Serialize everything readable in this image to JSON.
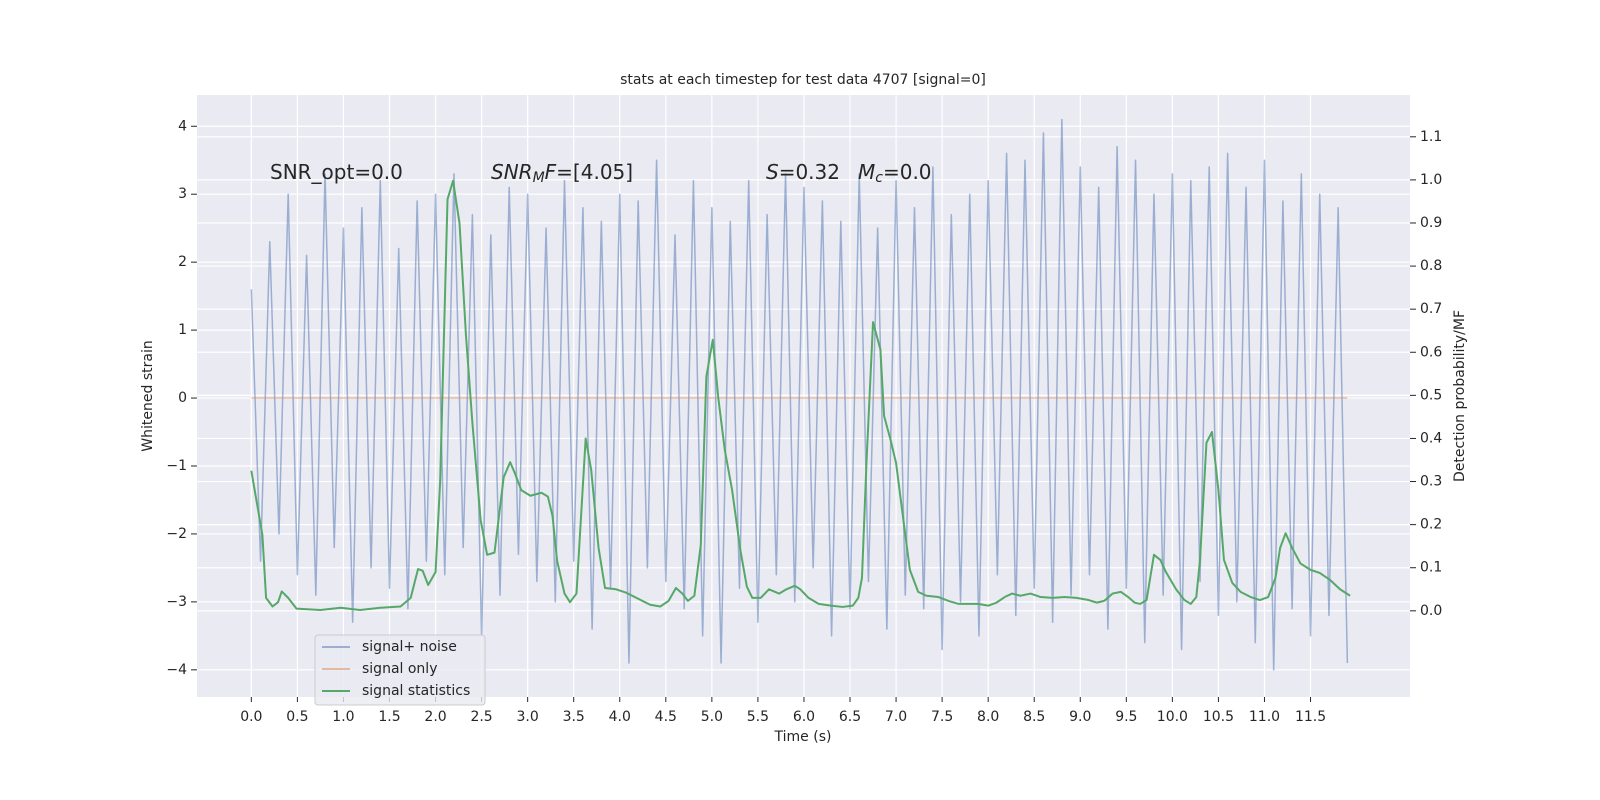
{
  "chart_data": {
    "type": "line",
    "title": "stats at each timestep for test data 4707 [signal=0]",
    "xlabel": "Time (s)",
    "ylabel": "Whitened strain",
    "y2label": "Detection probability/MF",
    "grid": true,
    "legend": "lower left",
    "background": "#eaeaf2",
    "xlim": [
      -0.59,
      12.58
    ],
    "ylim": [
      -4.4,
      4.46
    ],
    "y2lim": [
      -0.2,
      1.197
    ],
    "xticks": [
      {
        "value": 0,
        "label": "0.0"
      },
      {
        "value": 0.5,
        "label": "0.5"
      },
      {
        "value": 1,
        "label": "1.0"
      },
      {
        "value": 1.5,
        "label": "1.5"
      },
      {
        "value": 2,
        "label": "2.0"
      },
      {
        "value": 2.5,
        "label": "2.5"
      },
      {
        "value": 3,
        "label": "3.0"
      },
      {
        "value": 3.5,
        "label": "3.5"
      },
      {
        "value": 4,
        "label": "4.0"
      },
      {
        "value": 4.5,
        "label": "4.5"
      },
      {
        "value": 5,
        "label": "5.0"
      },
      {
        "value": 5.5,
        "label": "5.5"
      },
      {
        "value": 6,
        "label": "6.0"
      },
      {
        "value": 6.5,
        "label": "6.5"
      },
      {
        "value": 7,
        "label": "7.0"
      },
      {
        "value": 7.5,
        "label": "7.5"
      },
      {
        "value": 8,
        "label": "8.0"
      },
      {
        "value": 8.5,
        "label": "8.5"
      },
      {
        "value": 9,
        "label": "9.0"
      },
      {
        "value": 9.5,
        "label": "9.5"
      },
      {
        "value": 10,
        "label": "10.0"
      },
      {
        "value": 10.5,
        "label": "10.5"
      },
      {
        "value": 11,
        "label": "11.0"
      },
      {
        "value": 11.5,
        "label": "11.5"
      }
    ],
    "yticks": [
      {
        "value": -4,
        "label": "−4"
      },
      {
        "value": -3,
        "label": "−3"
      },
      {
        "value": -2,
        "label": "−2"
      },
      {
        "value": -1,
        "label": "−1"
      },
      0,
      1,
      2,
      3,
      4
    ],
    "y2ticks": [
      {
        "value": 0,
        "label": "0.0"
      },
      {
        "value": 0.1,
        "label": "0.1"
      },
      {
        "value": 0.2,
        "label": "0.2"
      },
      {
        "value": 0.3,
        "label": "0.3"
      },
      {
        "value": 0.4,
        "label": "0.4"
      },
      {
        "value": 0.5,
        "label": "0.5"
      },
      {
        "value": 0.6,
        "label": "0.6"
      },
      {
        "value": 0.7,
        "label": "0.7"
      },
      {
        "value": 0.8,
        "label": "0.8"
      },
      {
        "value": 0.9,
        "label": "0.9"
      },
      {
        "value": 1,
        "label": "1.0"
      },
      {
        "value": 1.1,
        "label": "1.1"
      }
    ],
    "annotations": [
      [
        {
          "text": "SNR_opt=0.0"
        }
      ],
      [
        {
          "text": "SNR",
          "style": "italic"
        },
        {
          "text": "M",
          "style": "italic-sub"
        },
        {
          "text": "F",
          "style": "italic"
        },
        {
          "text": "=[4.05]"
        }
      ],
      [
        {
          "text": "S",
          "style": "italic"
        },
        {
          "text": "=0.32"
        }
      ],
      [
        {
          "text": "M",
          "style": "italic"
        },
        {
          "text": "c",
          "style": "italic-sub"
        },
        {
          "text": "=0.0"
        }
      ]
    ],
    "series": [
      {
        "name": "signal+ noise",
        "color": "#4c72b0",
        "opacity": 0.5,
        "x": [
          0,
          0.1,
          0.2,
          0.3,
          0.4,
          0.5,
          0.6,
          0.7,
          0.8,
          0.9,
          1,
          1.1,
          1.2,
          1.3,
          1.4,
          1.5,
          1.6,
          1.7,
          1.8,
          1.9,
          2,
          2.1,
          2.2,
          2.3,
          2.4,
          2.5,
          2.6,
          2.7,
          2.8,
          2.9,
          3,
          3.1,
          3.2,
          3.3,
          3.4,
          3.5,
          3.6,
          3.7,
          3.8,
          3.9,
          4,
          4.1,
          4.2,
          4.3,
          4.4,
          4.5,
          4.6,
          4.7,
          4.8,
          4.9,
          5,
          5.1,
          5.2,
          5.3,
          5.4,
          5.5,
          5.6,
          5.7,
          5.8,
          5.9,
          6,
          6.1,
          6.2,
          6.3,
          6.4,
          6.5,
          6.6,
          6.7,
          6.8,
          6.9,
          7,
          7.1,
          7.2,
          7.3,
          7.4,
          7.5,
          7.6,
          7.7,
          7.8,
          7.9,
          8,
          8.1,
          8.2,
          8.3,
          8.4,
          8.5,
          8.6,
          8.7,
          8.8,
          8.9,
          9,
          9.1,
          9.2,
          9.3,
          9.4,
          9.5,
          9.6,
          9.7,
          9.8,
          9.9,
          10,
          10.1,
          10.2,
          10.3,
          10.4,
          10.5,
          10.6,
          10.7,
          10.8,
          10.9,
          11,
          11.1,
          11.2,
          11.3,
          11.4,
          11.5,
          11.6,
          11.7,
          11.8,
          11.9
        ],
        "values": [
          1.6,
          -2.4,
          2.3,
          -2.0,
          3.0,
          -2.6,
          2.1,
          -2.9,
          3.3,
          -2.2,
          2.5,
          -3.3,
          2.8,
          -2.5,
          3.2,
          -2.8,
          2.2,
          -3.1,
          2.9,
          -2.4,
          3.0,
          -2.6,
          3.3,
          -2.2,
          2.7,
          -3.5,
          2.4,
          -2.9,
          3.1,
          -2.3,
          3.0,
          -2.7,
          2.5,
          -3.0,
          3.2,
          -2.4,
          2.8,
          -3.4,
          2.6,
          -2.8,
          3.0,
          -3.9,
          2.9,
          -2.5,
          3.5,
          -2.7,
          2.4,
          -3.1,
          3.2,
          -3.5,
          2.8,
          -3.9,
          2.6,
          -2.8,
          3.2,
          -3.3,
          2.7,
          -2.6,
          3.3,
          -3.0,
          3.1,
          -2.5,
          2.9,
          -3.5,
          2.6,
          -3.1,
          3.3,
          -2.7,
          2.5,
          -3.4,
          3.2,
          -2.9,
          2.8,
          -3.1,
          3.4,
          -3.7,
          2.7,
          -3.0,
          3.0,
          -3.5,
          3.2,
          -2.6,
          3.6,
          -3.2,
          3.5,
          -2.8,
          3.9,
          -3.3,
          4.1,
          -2.9,
          3.4,
          -2.6,
          3.1,
          -3.4,
          3.7,
          -2.8,
          3.5,
          -3.6,
          3.0,
          -2.9,
          3.3,
          -3.7,
          3.2,
          -2.7,
          3.4,
          -3.2,
          3.6,
          -3.0,
          3.1,
          -3.6,
          3.5,
          -4.0,
          2.9,
          -3.1,
          3.3,
          -3.5,
          3.0,
          -3.2,
          2.8,
          -3.9
        ]
      },
      {
        "name": "signal only",
        "color": "#dd8452",
        "opacity": 0.5,
        "x": [
          0,
          11.9
        ],
        "values": [
          0,
          0
        ]
      },
      {
        "name": "signal statistics",
        "color": "#55a868",
        "opacity": 1,
        "axis": "y2",
        "x": [
          0,
          0.12,
          0.16,
          0.23,
          0.29,
          0.33,
          0.4,
          0.49,
          0.75,
          0.97,
          1.18,
          1.4,
          1.62,
          1.73,
          1.81,
          1.86,
          1.92,
          2.0,
          2.05,
          2.13,
          2.19,
          2.26,
          2.33,
          2.4,
          2.49,
          2.56,
          2.64,
          2.74,
          2.81,
          2.86,
          2.93,
          3.03,
          3.15,
          3.22,
          3.27,
          3.32,
          3.4,
          3.46,
          3.53,
          3.63,
          3.69,
          3.77,
          3.84,
          3.96,
          4.07,
          4.2,
          4.33,
          4.44,
          4.53,
          4.61,
          4.68,
          4.74,
          4.81,
          4.88,
          4.94,
          5.01,
          5.07,
          5.14,
          5.22,
          5.31,
          5.38,
          5.44,
          5.53,
          5.62,
          5.73,
          5.81,
          5.9,
          5.96,
          6.05,
          6.16,
          6.29,
          6.42,
          6.53,
          6.59,
          6.63,
          6.68,
          6.75,
          6.83,
          6.87,
          6.94,
          7.0,
          7.08,
          7.15,
          7.24,
          7.33,
          7.46,
          7.57,
          7.68,
          7.78,
          7.89,
          8.0,
          8.09,
          8.18,
          8.26,
          8.35,
          8.46,
          8.57,
          8.7,
          8.83,
          8.96,
          9.09,
          9.18,
          9.26,
          9.35,
          9.44,
          9.52,
          9.59,
          9.65,
          9.72,
          9.8,
          9.87,
          9.93,
          10.04,
          10.13,
          10.2,
          10.26,
          10.3,
          10.37,
          10.43,
          10.5,
          10.56,
          10.65,
          10.74,
          10.85,
          10.95,
          11.04,
          11.12,
          11.17,
          11.23,
          11.3,
          11.39,
          11.5,
          11.6,
          11.71,
          11.82,
          11.93
        ],
        "values": [
          0.325,
          0.176,
          0.03,
          0.01,
          0.02,
          0.045,
          0.03,
          0.005,
          0.002,
          0.007,
          0.002,
          0.007,
          0.01,
          0.03,
          0.097,
          0.093,
          0.06,
          0.09,
          0.3,
          0.955,
          0.998,
          0.9,
          0.64,
          0.436,
          0.21,
          0.13,
          0.135,
          0.31,
          0.345,
          0.32,
          0.28,
          0.267,
          0.274,
          0.265,
          0.22,
          0.116,
          0.04,
          0.02,
          0.04,
          0.4,
          0.327,
          0.146,
          0.053,
          0.05,
          0.042,
          0.028,
          0.014,
          0.01,
          0.023,
          0.053,
          0.04,
          0.023,
          0.035,
          0.153,
          0.543,
          0.629,
          0.494,
          0.374,
          0.28,
          0.14,
          0.056,
          0.03,
          0.03,
          0.05,
          0.04,
          0.05,
          0.058,
          0.05,
          0.03,
          0.016,
          0.012,
          0.009,
          0.012,
          0.03,
          0.077,
          0.35,
          0.67,
          0.606,
          0.452,
          0.397,
          0.343,
          0.21,
          0.095,
          0.044,
          0.035,
          0.032,
          0.023,
          0.016,
          0.016,
          0.016,
          0.012,
          0.019,
          0.032,
          0.04,
          0.035,
          0.04,
          0.032,
          0.03,
          0.032,
          0.03,
          0.025,
          0.019,
          0.023,
          0.04,
          0.044,
          0.032,
          0.019,
          0.016,
          0.025,
          0.13,
          0.118,
          0.09,
          0.05,
          0.025,
          0.016,
          0.032,
          0.118,
          0.39,
          0.415,
          0.28,
          0.118,
          0.065,
          0.044,
          0.032,
          0.025,
          0.032,
          0.077,
          0.146,
          0.18,
          0.146,
          0.11,
          0.095,
          0.088,
          0.072,
          0.05,
          0.035
        ]
      }
    ]
  }
}
